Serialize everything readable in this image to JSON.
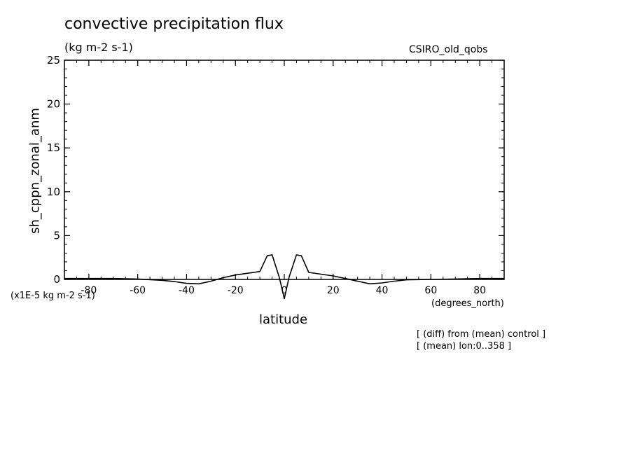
{
  "chart_data": {
    "type": "line",
    "title": "convective precipitation flux",
    "units": "(kg m-2 s-1)",
    "model": "CSIRO_old_qobs",
    "ylabel": "sh_cppn_zonal_anm",
    "xlabel": "latitude",
    "x_units": "(degrees_north)",
    "y_scale_note": "(x1E-5 kg m-2 s-1)",
    "notes": [
      "[ (diff) from (mean) control ]",
      "[ (mean) lon:0..358 ]"
    ],
    "xlim": [
      -90,
      90
    ],
    "ylim": [
      0,
      25
    ],
    "x_ticks": [
      -80,
      -60,
      -40,
      -20,
      0,
      20,
      40,
      60,
      80
    ],
    "x_tick_labels": [
      "-80",
      "-60",
      "-40",
      "-20",
      "0",
      "20",
      "40",
      "60",
      "80"
    ],
    "y_ticks": [
      0,
      5,
      10,
      15,
      20,
      25
    ],
    "y_tick_labels": [
      "0",
      "5",
      "10",
      "15",
      "20",
      "25"
    ],
    "grid": false,
    "series": [
      {
        "color": "#000000",
        "x": [
          -90,
          -80,
          -70,
          -60,
          -50,
          -45,
          -40,
          -35,
          -30,
          -25,
          -20,
          -15,
          -10,
          -7,
          -5,
          -2,
          0,
          2,
          5,
          7,
          10,
          15,
          20,
          25,
          30,
          35,
          40,
          45,
          50,
          60,
          70,
          80,
          90
        ],
        "y": [
          0.1,
          0.1,
          0.1,
          0.05,
          -0.1,
          -0.25,
          -0.45,
          -0.5,
          -0.2,
          0.2,
          0.5,
          0.7,
          0.9,
          2.7,
          2.8,
          0.2,
          -2.2,
          0.3,
          2.8,
          2.7,
          0.8,
          0.6,
          0.4,
          0.1,
          -0.2,
          -0.5,
          -0.4,
          -0.2,
          -0.05,
          0.0,
          0.05,
          0.1,
          0.1
        ]
      }
    ]
  }
}
